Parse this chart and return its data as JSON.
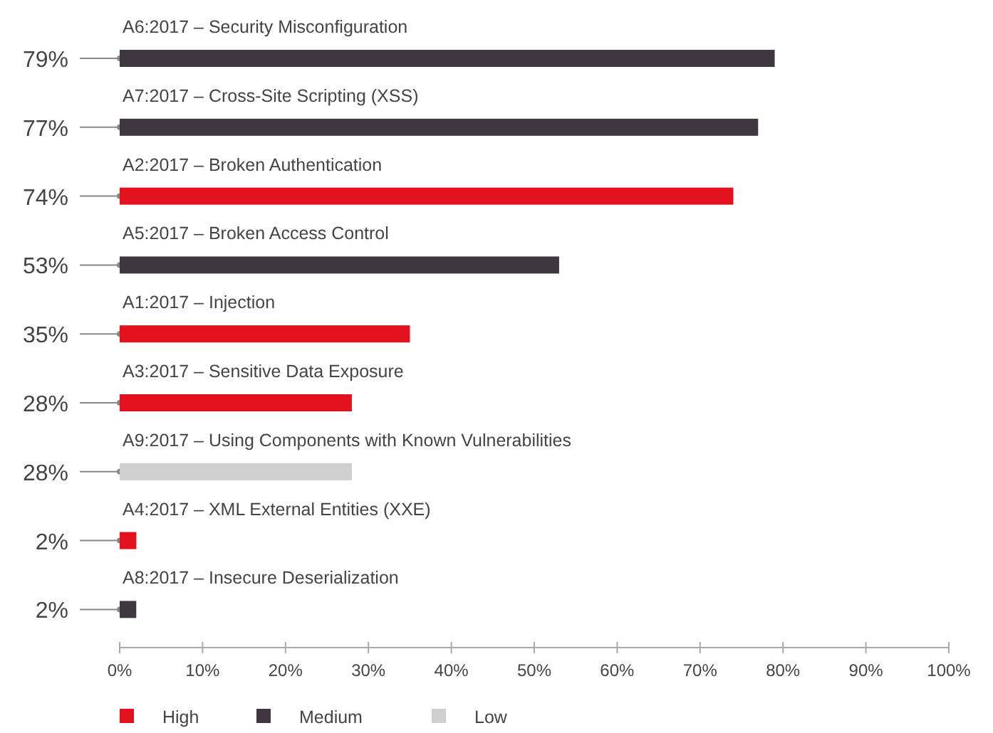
{
  "chart_data": {
    "type": "bar",
    "orientation": "horizontal",
    "legend": "bottom left",
    "categories": [
      "A6:2017 – Security Misconfiguration",
      "A7:2017 – Cross-Site Scripting (XSS)",
      "A2:2017 – Broken Authentication",
      "A5:2017 – Broken Access Control",
      "A1:2017 – Injection",
      "A3:2017 – Sensitive Data Exposure",
      "A9:2017 – Using Components with Known Vulnerabilities",
      "A4:2017 – XML External Entities (XXE)",
      "A8:2017 – Insecure Deserialization"
    ],
    "series": [
      {
        "name": "High",
        "color": "#e3101e",
        "values": [
          null,
          null,
          74,
          null,
          35,
          28,
          null,
          2,
          null
        ],
        "value_labels": [
          null,
          null,
          "74%",
          null,
          "35%",
          "28%",
          null,
          "2%",
          null
        ]
      },
      {
        "name": "Medium",
        "color": "#3e3742",
        "values": [
          79,
          77,
          null,
          53,
          null,
          null,
          null,
          null,
          2
        ],
        "value_labels": [
          "79%",
          "77%",
          null,
          "53%",
          null,
          null,
          null,
          null,
          "2%"
        ]
      },
      {
        "name": "Low",
        "color": "#cfcfcf",
        "values": [
          null,
          null,
          null,
          null,
          null,
          null,
          28,
          null,
          null
        ],
        "value_labels": [
          null,
          null,
          null,
          null,
          null,
          null,
          "28%",
          null,
          null
        ]
      }
    ],
    "xlim": [
      0,
      100
    ],
    "xticks": [
      {
        "value": 0,
        "label": "0%"
      },
      {
        "value": 10,
        "label": "10%"
      },
      {
        "value": 20,
        "label": "20%"
      },
      {
        "value": 30,
        "label": "30%"
      },
      {
        "value": 40,
        "label": "40%"
      },
      {
        "value": 50,
        "label": "50%"
      },
      {
        "value": 60,
        "label": "60%"
      },
      {
        "value": 70,
        "label": "70%"
      },
      {
        "value": 80,
        "label": "80%"
      },
      {
        "value": 90,
        "label": "90%"
      },
      {
        "value": 100,
        "label": "100%"
      }
    ]
  }
}
